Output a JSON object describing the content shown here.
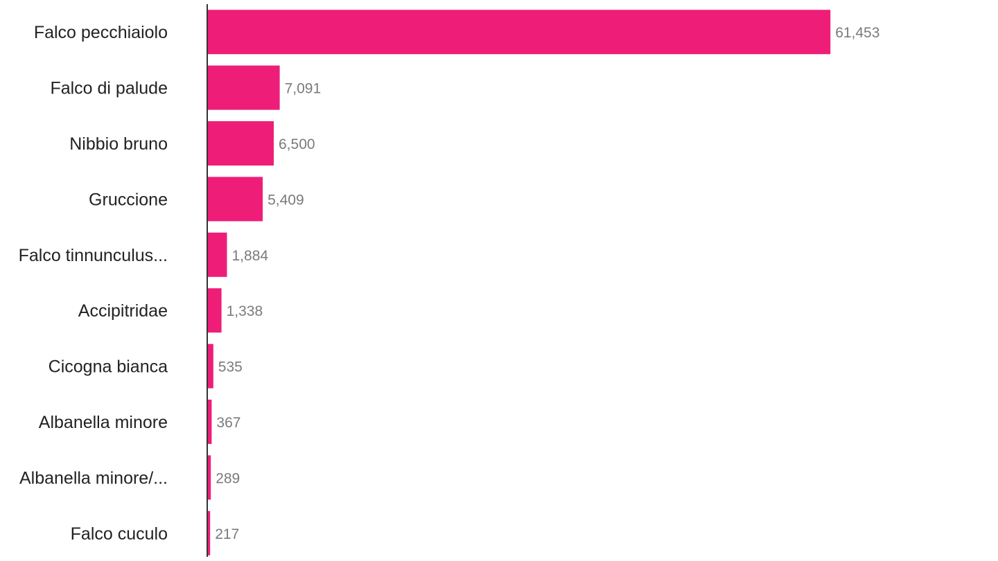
{
  "chart_data": {
    "type": "bar",
    "orientation": "horizontal",
    "categories": [
      "Falco pecchiaiolo",
      "Falco di palude",
      "Nibbio bruno",
      "Gruccione",
      "Falco tinnunculus...",
      "Accipitridae",
      "Cicogna bianca",
      "Albanella minore",
      "Albanella minore/...",
      "Falco cuculo"
    ],
    "values": [
      61453,
      7091,
      6500,
      5409,
      1884,
      1338,
      535,
      367,
      289,
      217
    ],
    "value_labels": [
      "61,453",
      "7,091",
      "6,500",
      "5,409",
      "1,884",
      "1,338",
      "535",
      "367",
      "289",
      "217"
    ],
    "xlim": [
      0,
      78000
    ],
    "grid": false,
    "legend": "none",
    "bar_color": "#ee1e78",
    "axis_color": "#333333",
    "title": "",
    "xlabel": "",
    "ylabel": ""
  }
}
